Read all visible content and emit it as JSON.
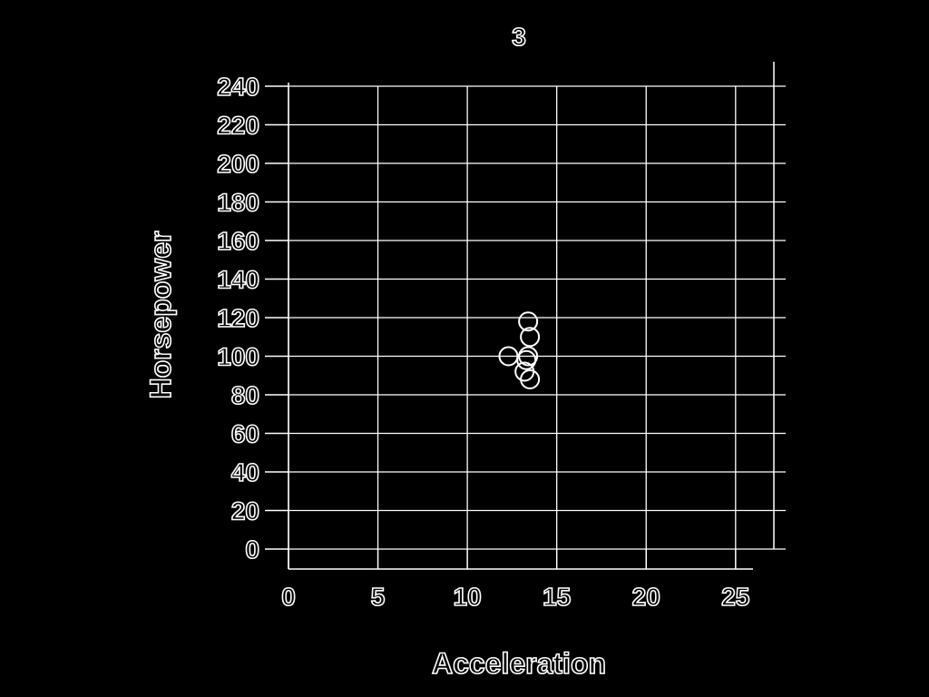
{
  "chart_data": {
    "type": "scatter",
    "title": "3",
    "xlabel": "Acceleration",
    "ylabel": "Horsepower",
    "xlim": [
      0,
      27
    ],
    "ylim": [
      0,
      240
    ],
    "xticks": [
      0,
      5,
      10,
      15,
      20,
      25
    ],
    "yticks": [
      0,
      20,
      40,
      60,
      80,
      100,
      120,
      140,
      160,
      180,
      200,
      220,
      240
    ],
    "grid": true,
    "legend": "none",
    "series": [
      {
        "points": [
          {
            "x": 12.3,
            "y": 100
          },
          {
            "x": 13.4,
            "y": 118
          },
          {
            "x": 13.5,
            "y": 110
          },
          {
            "x": 13.4,
            "y": 100
          },
          {
            "x": 13.2,
            "y": 92
          },
          {
            "x": 13.5,
            "y": 88
          },
          {
            "x": 13.3,
            "y": 98
          }
        ]
      }
    ],
    "colors": {
      "background": "#000000",
      "foreground": "#ffffff"
    }
  }
}
